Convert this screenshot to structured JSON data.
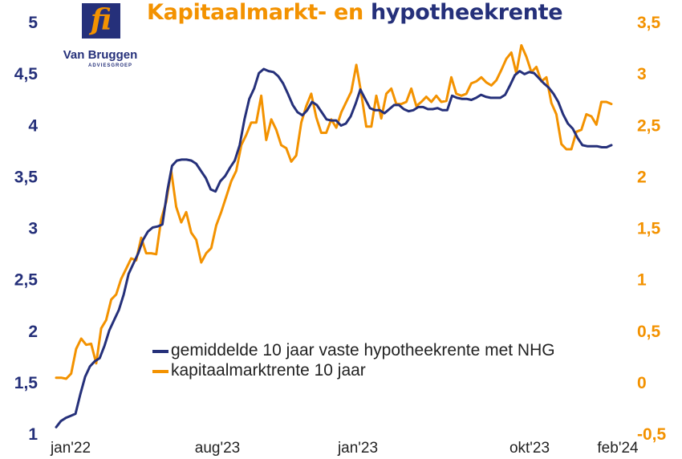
{
  "title": {
    "part1": "Kapitaalmarkt- en ",
    "part2": "hypotheekrente"
  },
  "logo": {
    "mark": "fi",
    "name": "Van Bruggen",
    "sub": "ADVIESGROEP"
  },
  "colors": {
    "navy": "#25307a",
    "orange": "#f39200"
  },
  "chart_data": {
    "type": "line",
    "x_ticks": [
      "jan'22",
      "aug'23",
      "jan'23",
      "okt'23",
      "feb'24"
    ],
    "y_left": {
      "min": 1,
      "max": 5,
      "ticks": [
        "1",
        "1,5",
        "2",
        "2,5",
        "3",
        "3,5",
        "4",
        "4,5",
        "5"
      ]
    },
    "y_right": {
      "min": -0.5,
      "max": 3.5,
      "ticks": [
        "-0,5",
        "0",
        "0,5",
        "1",
        "1,5",
        "2",
        "2,5",
        "3",
        "3,5"
      ]
    },
    "series": [
      {
        "name": "gemiddelde 10 jaar vaste hypotheekrente met NHG",
        "axis": "left",
        "color": "#25307a",
        "values": [
          1.06,
          1.12,
          1.15,
          1.17,
          1.19,
          1.38,
          1.55,
          1.65,
          1.7,
          1.73,
          1.85,
          2.0,
          2.1,
          2.2,
          2.35,
          2.55,
          2.65,
          2.75,
          2.88,
          2.96,
          3.0,
          3.01,
          3.03,
          3.35,
          3.6,
          3.65,
          3.66,
          3.66,
          3.65,
          3.62,
          3.55,
          3.48,
          3.37,
          3.35,
          3.45,
          3.5,
          3.58,
          3.65,
          3.8,
          4.05,
          4.25,
          4.35,
          4.5,
          4.54,
          4.52,
          4.51,
          4.47,
          4.4,
          4.3,
          4.19,
          4.12,
          4.09,
          4.14,
          4.22,
          4.19,
          4.12,
          4.05,
          4.04,
          4.04,
          3.99,
          4.01,
          4.08,
          4.2,
          4.34,
          4.25,
          4.16,
          4.14,
          4.14,
          4.11,
          4.15,
          4.19,
          4.19,
          4.15,
          4.13,
          4.14,
          4.17,
          4.17,
          4.15,
          4.15,
          4.16,
          4.14,
          4.14,
          4.28,
          4.26,
          4.25,
          4.25,
          4.24,
          4.26,
          4.29,
          4.27,
          4.26,
          4.26,
          4.26,
          4.29,
          4.38,
          4.48,
          4.52,
          4.49,
          4.51,
          4.5,
          4.45,
          4.4,
          4.36,
          4.3,
          4.22,
          4.1,
          4.01,
          3.96,
          3.87,
          3.8,
          3.79,
          3.79,
          3.79,
          3.78,
          3.78,
          3.8
        ]
      },
      {
        "name": "kapitaalmarktrente 10 jaar",
        "axis": "right",
        "color": "#f39200",
        "values": [
          0.04,
          0.04,
          0.03,
          0.08,
          0.32,
          0.42,
          0.36,
          0.37,
          0.18,
          0.52,
          0.6,
          0.8,
          0.85,
          1.0,
          1.1,
          1.2,
          1.18,
          1.4,
          1.25,
          1.25,
          1.24,
          1.58,
          1.75,
          2.05,
          1.7,
          1.55,
          1.65,
          1.45,
          1.38,
          1.16,
          1.25,
          1.3,
          1.52,
          1.65,
          1.8,
          1.95,
          2.05,
          2.3,
          2.4,
          2.52,
          2.52,
          2.78,
          2.35,
          2.55,
          2.45,
          2.3,
          2.27,
          2.14,
          2.2,
          2.52,
          2.68,
          2.8,
          2.57,
          2.42,
          2.42,
          2.55,
          2.47,
          2.62,
          2.72,
          2.82,
          3.08,
          2.8,
          2.48,
          2.48,
          2.78,
          2.56,
          2.8,
          2.85,
          2.7,
          2.7,
          2.72,
          2.85,
          2.68,
          2.72,
          2.77,
          2.72,
          2.78,
          2.72,
          2.73,
          2.96,
          2.8,
          2.78,
          2.8,
          2.9,
          2.92,
          2.96,
          2.91,
          2.88,
          2.93,
          3.03,
          3.14,
          3.2,
          3.0,
          3.27,
          3.16,
          3.01,
          3.06,
          2.92,
          2.96,
          2.71,
          2.6,
          2.31,
          2.26,
          2.26,
          2.43,
          2.45,
          2.6,
          2.58,
          2.5,
          2.72,
          2.72,
          2.7
        ]
      }
    ]
  }
}
